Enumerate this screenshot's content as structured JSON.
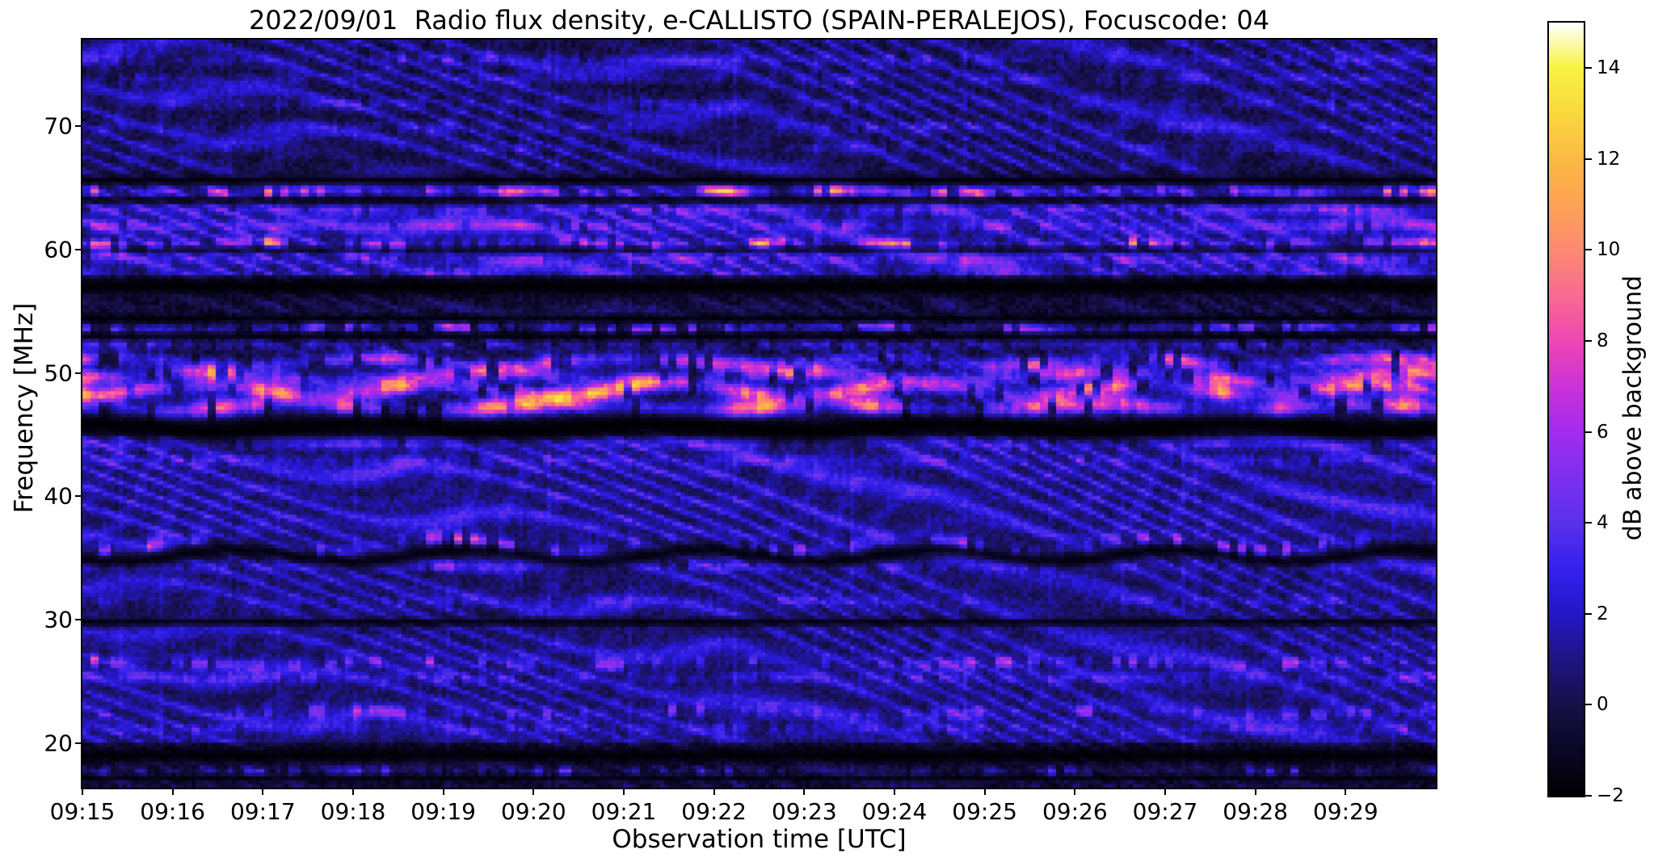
{
  "title": "2022/09/01  Radio flux density, e-CALLISTO (SPAIN-PERALEJOS), Focuscode: 04",
  "chart_data": {
    "type": "heatmap",
    "subtype": "radio-spectrogram",
    "title": "2022/09/01  Radio flux density, e-CALLISTO (SPAIN-PERALEJOS), Focuscode: 04",
    "xlabel": "Observation time [UTC]",
    "ylabel": "Frequency [MHz]",
    "x_ticks": [
      "09:15",
      "09:16",
      "09:17",
      "09:18",
      "09:19",
      "09:20",
      "09:21",
      "09:22",
      "09:23",
      "09:24",
      "09:25",
      "09:26",
      "09:27",
      "09:28",
      "09:29"
    ],
    "x_range_minutes": [
      0,
      15
    ],
    "y_ticks": [
      20,
      30,
      40,
      50,
      60,
      70
    ],
    "ylim": [
      16.4,
      77.0
    ],
    "grid": false,
    "legend": "colorbar-right",
    "colorbar": {
      "label": "dB above background",
      "vmin": -2,
      "vmax": 15,
      "tick_labels": [
        "14",
        "12",
        "10",
        "8",
        "6",
        "4",
        "2",
        "0",
        "−2"
      ],
      "tick_values": [
        14,
        12,
        10,
        8,
        6,
        4,
        2,
        0,
        -2
      ],
      "colormap_stops": [
        {
          "v": -2,
          "c": "#000000"
        },
        {
          "v": -1,
          "c": "#0a0626"
        },
        {
          "v": 0,
          "c": "#171046"
        },
        {
          "v": 1,
          "c": "#1f1483"
        },
        {
          "v": 2,
          "c": "#2417c6"
        },
        {
          "v": 3,
          "c": "#3420ee"
        },
        {
          "v": 4,
          "c": "#5a31ea"
        },
        {
          "v": 5,
          "c": "#7c2ff0"
        },
        {
          "v": 6,
          "c": "#a32bee"
        },
        {
          "v": 7,
          "c": "#cb31d8"
        },
        {
          "v": 8,
          "c": "#ef46b2"
        },
        {
          "v": 9,
          "c": "#f96a92"
        },
        {
          "v": 10,
          "c": "#fc8a70"
        },
        {
          "v": 11,
          "c": "#fda254"
        },
        {
          "v": 12,
          "c": "#fcb943"
        },
        {
          "v": 13,
          "c": "#f9d83e"
        },
        {
          "v": 14,
          "c": "#f7f340"
        },
        {
          "v": 15,
          "c": "#ffffff"
        }
      ]
    },
    "spectrogram": {
      "rows": 200,
      "cols": 335,
      "noise_amp": 1.5,
      "fringe": {
        "kf": 0.52,
        "kt": 1.05,
        "kt2": 1.6,
        "tsplit": 7.3,
        "mod_amp": 1.15,
        "mod_per": 5.2,
        "mod_kf": 0.28
      },
      "fringe2": {
        "kf": 0.31,
        "kt": -0.8,
        "mod_amp": 0.9,
        "mod_per": 3.7,
        "mod_kf": 0.2
      },
      "background_zones": [
        {
          "f0": 66.0,
          "f1": 77.2,
          "v": -0.2,
          "r": 1.6
        },
        {
          "f0": 57.8,
          "f1": 66.0,
          "v": 0.6,
          "r": 1.9
        },
        {
          "f0": 54.0,
          "f1": 57.8,
          "v": -0.7,
          "r": 0.9
        },
        {
          "f0": 45.0,
          "f1": 54.0,
          "v": -0.6,
          "r": 0.9
        },
        {
          "f0": 36.6,
          "f1": 45.0,
          "v": 0.5,
          "r": 1.9
        },
        {
          "f0": 30.2,
          "f1": 36.6,
          "v": 0.3,
          "r": 1.5
        },
        {
          "f0": 20.0,
          "f1": 30.2,
          "v": 0.4,
          "r": 1.5
        },
        {
          "f0": 16.4,
          "f1": 20.0,
          "v": -0.8,
          "r": 0.8
        }
      ],
      "bands": [
        {
          "f": 75.4,
          "hw": 0.35,
          "base": 1.2,
          "amp": 1.5,
          "per": 3.2,
          "ph": 0.5,
          "duty": 0.8
        },
        {
          "f": 73.8,
          "hw": 0.3,
          "base": 0.8,
          "amp": 1.2,
          "per": 2.7,
          "ph": 2.1,
          "duty": 0.7
        },
        {
          "f": 71.8,
          "hw": 0.3,
          "base": 0.7,
          "amp": 1.2,
          "per": 3.6,
          "ph": 4.0,
          "duty": 0.7
        },
        {
          "f": 69.9,
          "hw": 0.3,
          "base": 0.8,
          "amp": 1.3,
          "per": 3.0,
          "ph": 1.2,
          "duty": 0.75
        },
        {
          "f": 68.2,
          "hw": 0.3,
          "base": 0.6,
          "amp": 1.1,
          "per": 2.4,
          "ph": 3.3,
          "duty": 0.7
        },
        {
          "f": 64.7,
          "hw": 0.35,
          "base": 2.5,
          "amp": 7.0,
          "per": 1.6,
          "ph": 0.3,
          "duty": 0.45,
          "wob": 0.15,
          "wper": 4.0
        },
        {
          "f": 63.2,
          "hw": 0.3,
          "base": 1.8,
          "amp": 1.6,
          "per": 2.2,
          "ph": 1.0,
          "duty": 0.8
        },
        {
          "f": 61.9,
          "hw": 0.35,
          "base": 1.6,
          "amp": 1.8,
          "per": 2.8,
          "ph": 2.5,
          "duty": 0.8
        },
        {
          "f": 60.4,
          "hw": 0.35,
          "base": 2.2,
          "amp": 7.0,
          "per": 1.9,
          "ph": 1.7,
          "duty": 0.5,
          "wob": 0.2,
          "wper": 3.1
        },
        {
          "f": 59.2,
          "hw": 0.3,
          "base": 1.6,
          "amp": 1.6,
          "per": 2.3,
          "ph": 0.8,
          "duty": 0.75
        },
        {
          "f": 58.1,
          "hw": 0.3,
          "base": 1.2,
          "amp": 1.4,
          "per": 2.0,
          "ph": 2.9,
          "duty": 0.7
        },
        {
          "f": 53.6,
          "hw": 0.3,
          "base": 2.2,
          "amp": 4.5,
          "per": 2.1,
          "ph": 1.1,
          "duty": 0.6,
          "wob": 0.15,
          "wper": 5.0
        },
        {
          "f": 52.3,
          "hw": 0.3,
          "base": 1.5,
          "amp": 1.5,
          "per": 2.6,
          "ph": 2.0,
          "duty": 0.7
        },
        {
          "f": 50.9,
          "hw": 0.4,
          "base": 3.0,
          "amp": 4.5,
          "per": 2.4,
          "ph": 0.6,
          "duty": 0.8,
          "wob": 0.3,
          "wper": 2.8
        },
        {
          "f": 49.7,
          "hw": 0.45,
          "base": 3.5,
          "amp": 5.5,
          "per": 2.2,
          "ph": 2.8,
          "duty": 0.85,
          "wob": 0.35,
          "wper": 3.4
        },
        {
          "f": 48.6,
          "hw": 0.45,
          "base": 4.0,
          "amp": 6.5,
          "per": 1.8,
          "ph": 1.4,
          "duty": 0.85,
          "wob": 0.4,
          "wper": 2.6
        },
        {
          "f": 47.1,
          "hw": 0.55,
          "base": 4.5,
          "amp": 6.5,
          "per": 2.0,
          "ph": 4.6,
          "duty": 0.9,
          "wob": 0.35,
          "wper": 3.0
        },
        {
          "f": 44.3,
          "hw": 0.35,
          "base": 1.8,
          "amp": 1.8,
          "per": 2.4,
          "ph": 0.2,
          "duty": 0.8
        },
        {
          "f": 42.9,
          "hw": 0.3,
          "base": 1.2,
          "amp": 1.3,
          "per": 2.0,
          "ph": 3.8,
          "duty": 0.7
        },
        {
          "f": 36.0,
          "hw": 0.4,
          "base": 2.0,
          "amp": 8.0,
          "per": 2.6,
          "ph": 2.2,
          "duty": 0.38,
          "wob": 0.55,
          "wper": 2.6
        },
        {
          "f": 34.3,
          "hw": 0.3,
          "base": 1.3,
          "amp": 1.5,
          "per": 2.2,
          "ph": 1.5,
          "duty": 0.7
        },
        {
          "f": 31.5,
          "hw": 0.3,
          "base": 0.9,
          "amp": 1.2,
          "per": 2.8,
          "ph": 0.9,
          "duty": 0.65
        },
        {
          "f": 26.5,
          "hw": 0.35,
          "base": 2.0,
          "amp": 3.5,
          "per": 2.0,
          "ph": 2.6,
          "duty": 0.45,
          "wob": 0.2,
          "wper": 3.6
        },
        {
          "f": 25.3,
          "hw": 0.3,
          "base": 1.4,
          "amp": 1.4,
          "per": 2.4,
          "ph": 1.9,
          "duty": 0.7
        },
        {
          "f": 22.5,
          "hw": 0.35,
          "base": 1.8,
          "amp": 2.8,
          "per": 2.2,
          "ph": 0.4,
          "duty": 0.45,
          "wob": 0.2,
          "wper": 4.2
        },
        {
          "f": 21.2,
          "hw": 0.3,
          "base": 1.2,
          "amp": 1.3,
          "per": 2.6,
          "ph": 3.1,
          "duty": 0.65
        },
        {
          "f": 17.7,
          "hw": 0.3,
          "base": 1.5,
          "amp": 3.0,
          "per": 1.7,
          "ph": 1.3,
          "duty": 0.25
        }
      ],
      "black_stripes": [
        {
          "f": 65.6,
          "hw": 0.35,
          "s": 0.9
        },
        {
          "f": 64.0,
          "hw": 0.25,
          "s": 0.8
        },
        {
          "f": 60.0,
          "hw": 0.2,
          "s": 0.7
        },
        {
          "f": 57.0,
          "hw": 0.55,
          "s": 0.95
        },
        {
          "f": 54.4,
          "hw": 0.25,
          "s": 0.8
        },
        {
          "f": 53.0,
          "hw": 0.25,
          "s": 0.8
        },
        {
          "f": 45.6,
          "hw": 0.8,
          "s": 0.95,
          "wob": 0.3,
          "wper": 3.2
        },
        {
          "f": 35.2,
          "hw": 0.45,
          "s": 0.85,
          "wob": 0.5,
          "wper": 2.6
        },
        {
          "f": 29.8,
          "hw": 0.25,
          "s": 0.85
        },
        {
          "f": 19.0,
          "hw": 0.45,
          "s": 0.9
        },
        {
          "f": 17.2,
          "hw": 0.2,
          "s": 0.7
        }
      ]
    }
  }
}
